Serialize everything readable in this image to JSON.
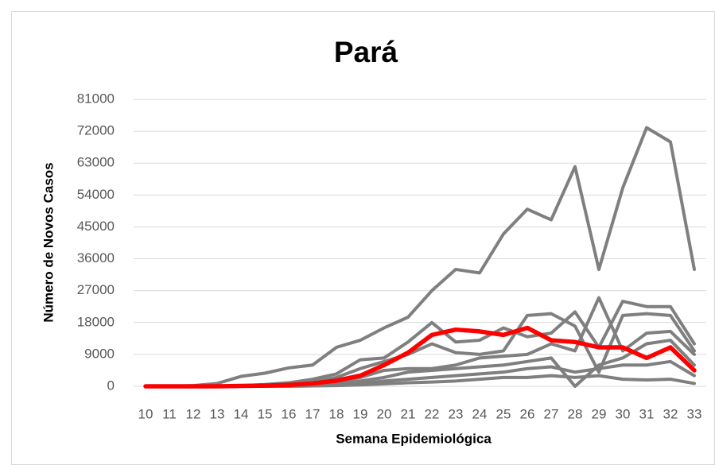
{
  "chart_data": {
    "type": "line",
    "title": "Pará",
    "x_label": "Semana Epidemiológica",
    "y_label": "Número de Novos Casos",
    "categories": [
      10,
      11,
      12,
      13,
      14,
      15,
      16,
      17,
      18,
      19,
      20,
      21,
      22,
      23,
      24,
      25,
      26,
      27,
      28,
      29,
      30,
      31,
      32,
      33
    ],
    "ylim": [
      0,
      81000
    ],
    "yticks": [
      0,
      9000,
      18000,
      27000,
      36000,
      45000,
      54000,
      63000,
      72000,
      81000
    ],
    "grid": true,
    "series": [
      {
        "color": "#7f7f7f",
        "values": [
          0,
          0,
          200,
          800,
          2800,
          3700,
          5200,
          6000,
          11000,
          13000,
          16500,
          19500,
          27000,
          33000,
          32000,
          43000,
          50000,
          47000,
          62000,
          33000,
          56000,
          73000,
          69000,
          33000
        ]
      },
      {
        "color": "#7f7f7f",
        "values": [
          0,
          0,
          0,
          0,
          200,
          500,
          1000,
          2000,
          3500,
          7500,
          8000,
          12500,
          18000,
          12500,
          13000,
          16500,
          14000,
          15000,
          21000,
          11000,
          24000,
          22500,
          22500,
          12000
        ]
      },
      {
        "color": "#7f7f7f",
        "values": [
          0,
          0,
          0,
          0,
          100,
          300,
          700,
          1200,
          2500,
          5000,
          7000,
          9000,
          12000,
          9500,
          9000,
          10000,
          20000,
          20500,
          17000,
          4000,
          20000,
          20500,
          20000,
          10000
        ]
      },
      {
        "color": "#7f7f7f",
        "values": [
          0,
          0,
          0,
          0,
          0,
          100,
          300,
          600,
          1200,
          2500,
          4500,
          5000,
          5000,
          6000,
          8000,
          8500,
          9000,
          12000,
          10000,
          25000,
          10000,
          15000,
          15500,
          9000
        ]
      },
      {
        "color": "#7f7f7f",
        "values": [
          0,
          0,
          0,
          0,
          0,
          50,
          100,
          300,
          600,
          1500,
          2500,
          4000,
          4500,
          5000,
          5500,
          6000,
          7000,
          8000,
          0,
          6000,
          8000,
          12000,
          13000,
          6000
        ]
      },
      {
        "color": "#7f7f7f",
        "values": [
          0,
          0,
          0,
          0,
          0,
          0,
          100,
          200,
          400,
          800,
          1500,
          2000,
          2500,
          3000,
          3500,
          4000,
          5000,
          5500,
          4000,
          5000,
          6000,
          6000,
          7000,
          3000
        ]
      },
      {
        "color": "#7f7f7f",
        "values": [
          0,
          0,
          0,
          0,
          0,
          0,
          0,
          100,
          200,
          400,
          700,
          1000,
          1200,
          1500,
          2000,
          2500,
          2500,
          3000,
          2500,
          3000,
          2000,
          1800,
          2000,
          800
        ]
      },
      {
        "color": "#ff0000",
        "values": [
          0,
          0,
          0,
          0,
          100,
          200,
          400,
          800,
          1600,
          3000,
          6000,
          9500,
          14500,
          16000,
          15500,
          14500,
          16500,
          13000,
          12500,
          11000,
          11000,
          8000,
          11000,
          4500
        ]
      }
    ]
  }
}
